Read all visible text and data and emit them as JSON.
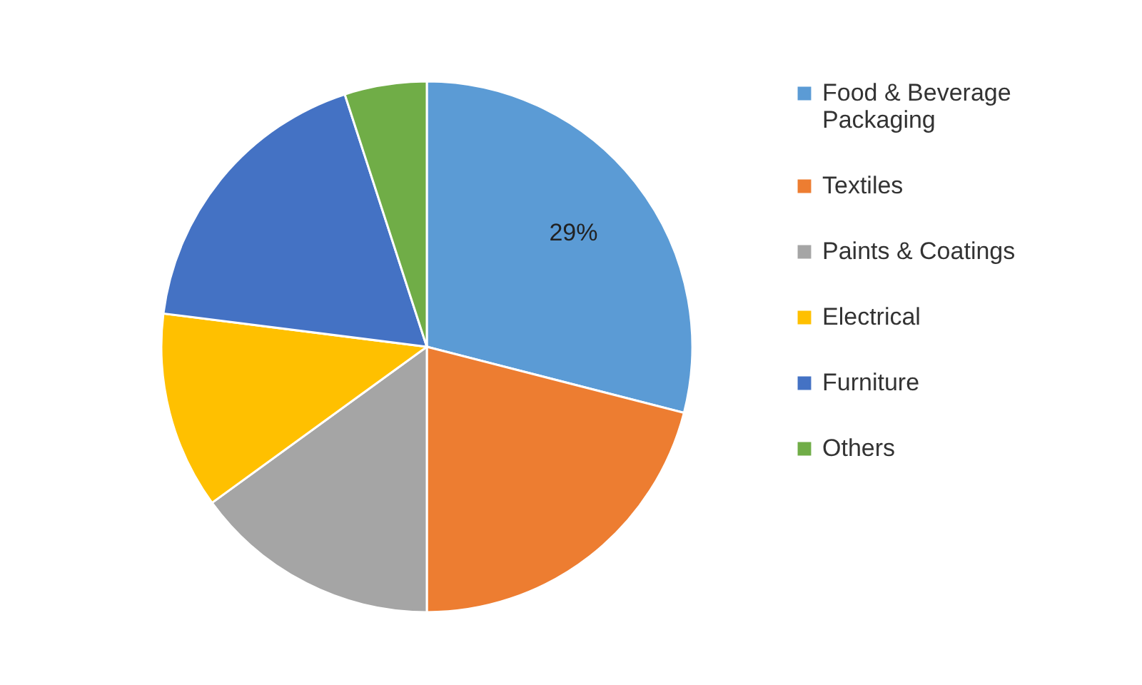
{
  "chart_data": {
    "type": "pie",
    "categories": [
      "Food & Beverage Packaging",
      "Textiles",
      "Paints & Coatings",
      "Electrical",
      "Furniture",
      "Others"
    ],
    "values": [
      29,
      21,
      15,
      12,
      18,
      5
    ],
    "colors": [
      "#5b9bd5",
      "#ed7d31",
      "#a5a5a5",
      "#ffc000",
      "#4472c4",
      "#70ad47"
    ],
    "value_labels": [
      "29%",
      null,
      null,
      null,
      null,
      null
    ],
    "legend": "right"
  }
}
